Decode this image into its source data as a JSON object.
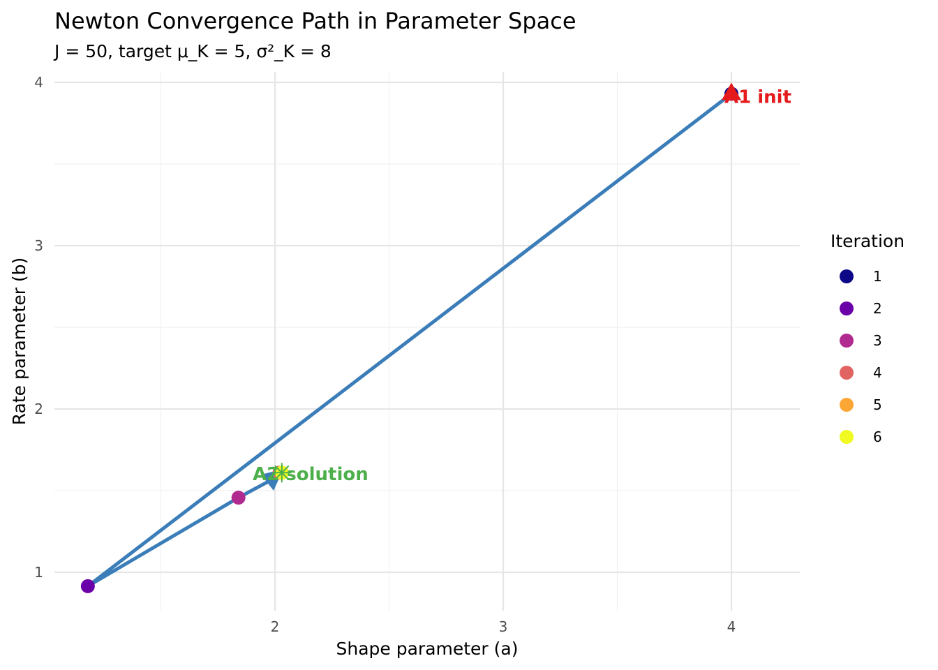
{
  "chart_data": {
    "type": "scatter",
    "title": "Newton Convergence Path in Parameter Space",
    "subtitle": "J = 50, target μ_K = 5, σ²_K = 8",
    "xlabel": "Shape parameter (a)",
    "ylabel": "Rate parameter (b)",
    "xlim": [
      0.97,
      4.3
    ],
    "ylim": [
      0.78,
      4.06
    ],
    "xticks": [
      2,
      3,
      4
    ],
    "yticks": [
      1,
      2,
      3,
      4
    ],
    "grid": true,
    "legend": {
      "title": "Iteration",
      "position": "right",
      "entries": [
        "1",
        "2",
        "3",
        "4",
        "5",
        "6"
      ]
    },
    "points": [
      {
        "iteration": 1,
        "a": 4.0,
        "b": 3.93,
        "color": "#0D0887"
      },
      {
        "iteration": 2,
        "a": 1.18,
        "b": 0.915,
        "color": "#6A00A8"
      },
      {
        "iteration": 3,
        "a": 1.84,
        "b": 1.457,
        "color": "#B12A90"
      },
      {
        "iteration": 4,
        "a": 2.02,
        "b": 1.61,
        "color": "#E16462"
      },
      {
        "iteration": 5,
        "a": 2.03,
        "b": 1.61,
        "color": "#FCA636"
      },
      {
        "iteration": 6,
        "a": 2.03,
        "b": 1.61,
        "color": "#F0F921"
      }
    ],
    "path_color": "#3A7DB8",
    "annotations": [
      {
        "text": "A1 init",
        "a": 4.0,
        "b": 3.93,
        "color": "#E41A1C",
        "marker": "triangle"
      },
      {
        "text": "A2 solution",
        "a": 2.03,
        "b": 1.61,
        "color": "#4DAF4A",
        "marker": "star"
      }
    ]
  }
}
